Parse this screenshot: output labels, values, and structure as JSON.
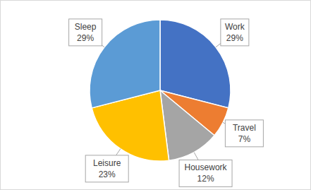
{
  "chart_data": {
    "type": "pie",
    "categories": [
      "Work",
      "Travel",
      "Housework",
      "Leisure",
      "Sleep"
    ],
    "values": [
      29,
      7,
      12,
      23,
      29
    ],
    "value_labels": [
      "29%",
      "7%",
      "12%",
      "23%",
      "29%"
    ],
    "colors": [
      "#4472c4",
      "#ed7d31",
      "#a5a5a5",
      "#ffc000",
      "#5b9bd5"
    ],
    "data_labels": true
  }
}
